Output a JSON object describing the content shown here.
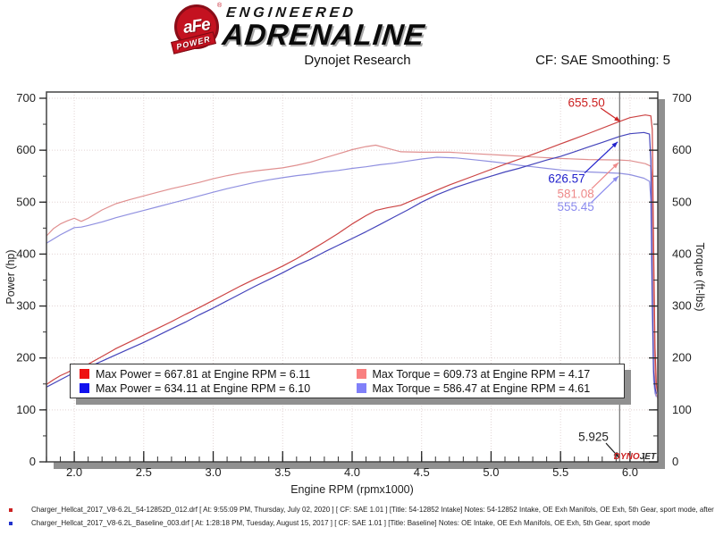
{
  "header": {
    "logo": {
      "badge_text": "aFe",
      "badge_reg": "®",
      "badge_sub": "POWER",
      "line1": "ENGINEERED",
      "line2": "ADRENALINE"
    },
    "title": "Dynojet Research",
    "cf_label": "CF: SAE Smoothing: 5"
  },
  "chart_data": {
    "type": "line",
    "xlabel": "Engine RPM (rpmx1000)",
    "ylabel_left": "Power (hp)",
    "ylabel_right": "Torque (ft-lbs)",
    "x_range": [
      1.8,
      6.2
    ],
    "y_range": [
      0,
      712
    ],
    "x_major_ticks": [
      2.0,
      2.5,
      3.0,
      3.5,
      4.0,
      4.5,
      5.0,
      5.5,
      6.0
    ],
    "x_minor_step": 0.1,
    "y_major_ticks": [
      0,
      100,
      200,
      300,
      400,
      500,
      600,
      700
    ],
    "y_minor_step": 50,
    "grid_x": [
      2.0,
      2.5,
      3.0,
      3.5,
      4.0,
      4.5,
      5.0,
      5.5,
      6.0
    ],
    "grid_y": [
      100,
      200,
      300,
      400,
      500,
      600,
      700
    ],
    "grid_on": true,
    "cursor_rpm": 5.925,
    "series": [
      {
        "name": "torque-intake",
        "color": "#e09090",
        "points": [
          [
            1.8,
            435
          ],
          [
            1.85,
            449
          ],
          [
            1.9,
            458
          ],
          [
            1.95,
            464
          ],
          [
            2.0,
            469
          ],
          [
            2.05,
            463
          ],
          [
            2.1,
            469
          ],
          [
            2.2,
            485
          ],
          [
            2.3,
            497
          ],
          [
            2.4,
            505
          ],
          [
            2.5,
            512
          ],
          [
            2.6,
            519
          ],
          [
            2.7,
            526
          ],
          [
            2.8,
            532
          ],
          [
            2.9,
            538
          ],
          [
            3.0,
            545
          ],
          [
            3.1,
            551
          ],
          [
            3.2,
            556
          ],
          [
            3.3,
            560
          ],
          [
            3.4,
            563
          ],
          [
            3.5,
            566
          ],
          [
            3.6,
            571
          ],
          [
            3.7,
            577
          ],
          [
            3.8,
            585
          ],
          [
            3.9,
            593
          ],
          [
            4.0,
            601
          ],
          [
            4.1,
            607
          ],
          [
            4.17,
            609.7
          ],
          [
            4.25,
            604
          ],
          [
            4.35,
            597
          ],
          [
            4.5,
            596
          ],
          [
            4.7,
            596
          ],
          [
            4.9,
            593
          ],
          [
            5.1,
            590
          ],
          [
            5.3,
            587
          ],
          [
            5.5,
            584
          ],
          [
            5.7,
            582
          ],
          [
            5.925,
            581.1
          ],
          [
            6.0,
            580
          ],
          [
            6.11,
            574
          ],
          [
            6.15,
            569
          ],
          [
            6.16,
            540
          ],
          [
            6.17,
            330
          ],
          [
            6.18,
            170
          ],
          [
            6.19,
            130
          ],
          [
            6.2,
            122
          ]
        ]
      },
      {
        "name": "torque-baseline",
        "color": "#9090e0",
        "points": [
          [
            1.8,
            421
          ],
          [
            1.9,
            437
          ],
          [
            2.0,
            451
          ],
          [
            2.05,
            452
          ],
          [
            2.1,
            455
          ],
          [
            2.2,
            462
          ],
          [
            2.3,
            470
          ],
          [
            2.4,
            477
          ],
          [
            2.5,
            484
          ],
          [
            2.6,
            491
          ],
          [
            2.7,
            498
          ],
          [
            2.8,
            505
          ],
          [
            2.9,
            512
          ],
          [
            3.0,
            519
          ],
          [
            3.1,
            526
          ],
          [
            3.2,
            532
          ],
          [
            3.3,
            538
          ],
          [
            3.4,
            543
          ],
          [
            3.5,
            547
          ],
          [
            3.6,
            551
          ],
          [
            3.7,
            554
          ],
          [
            3.8,
            558
          ],
          [
            3.9,
            561
          ],
          [
            4.0,
            565
          ],
          [
            4.1,
            568
          ],
          [
            4.2,
            572
          ],
          [
            4.3,
            575
          ],
          [
            4.4,
            579
          ],
          [
            4.5,
            583
          ],
          [
            4.61,
            586.5
          ],
          [
            4.75,
            585
          ],
          [
            4.9,
            581
          ],
          [
            5.0,
            578
          ],
          [
            5.1,
            575
          ],
          [
            5.2,
            571
          ],
          [
            5.3,
            568
          ],
          [
            5.4,
            565
          ],
          [
            5.5,
            562
          ],
          [
            5.6,
            560
          ],
          [
            5.7,
            558
          ],
          [
            5.8,
            557
          ],
          [
            5.925,
            555.5
          ],
          [
            6.0,
            553
          ],
          [
            6.1,
            546
          ],
          [
            6.14,
            540
          ],
          [
            6.15,
            505
          ],
          [
            6.16,
            290
          ],
          [
            6.17,
            158
          ],
          [
            6.18,
            132
          ],
          [
            6.19,
            125
          ]
        ]
      },
      {
        "name": "power-intake",
        "color": "#cc4444",
        "points": [
          [
            1.8,
            149
          ],
          [
            1.85,
            158
          ],
          [
            1.9,
            166
          ],
          [
            1.95,
            172
          ],
          [
            2.0,
            179
          ],
          [
            2.05,
            181
          ],
          [
            2.1,
            188
          ],
          [
            2.2,
            203
          ],
          [
            2.3,
            218
          ],
          [
            2.4,
            231
          ],
          [
            2.5,
            244
          ],
          [
            2.6,
            257
          ],
          [
            2.7,
            270
          ],
          [
            2.8,
            284
          ],
          [
            2.9,
            297
          ],
          [
            3.0,
            311
          ],
          [
            3.1,
            325
          ],
          [
            3.2,
            339
          ],
          [
            3.3,
            352
          ],
          [
            3.4,
            364
          ],
          [
            3.5,
            377
          ],
          [
            3.6,
            391
          ],
          [
            3.7,
            407
          ],
          [
            3.8,
            423
          ],
          [
            3.9,
            440
          ],
          [
            4.0,
            458
          ],
          [
            4.1,
            474
          ],
          [
            4.17,
            484
          ],
          [
            4.25,
            489
          ],
          [
            4.35,
            494
          ],
          [
            4.5,
            511
          ],
          [
            4.7,
            533
          ],
          [
            4.9,
            553
          ],
          [
            5.1,
            573
          ],
          [
            5.3,
            592
          ],
          [
            5.5,
            612
          ],
          [
            5.7,
            632
          ],
          [
            5.925,
            655.5
          ],
          [
            6.0,
            662.6
          ],
          [
            6.11,
            667.8
          ],
          [
            6.15,
            666
          ],
          [
            6.16,
            640
          ],
          [
            6.17,
            420
          ],
          [
            6.18,
            220
          ],
          [
            6.19,
            150
          ],
          [
            6.2,
            133
          ]
        ]
      },
      {
        "name": "power-baseline",
        "color": "#4444bb",
        "points": [
          [
            1.8,
            144
          ],
          [
            1.9,
            158
          ],
          [
            2.0,
            172
          ],
          [
            2.05,
            176
          ],
          [
            2.1,
            182
          ],
          [
            2.2,
            194
          ],
          [
            2.3,
            206
          ],
          [
            2.4,
            218
          ],
          [
            2.5,
            230
          ],
          [
            2.6,
            243
          ],
          [
            2.7,
            256
          ],
          [
            2.8,
            269
          ],
          [
            2.9,
            283
          ],
          [
            3.0,
            296
          ],
          [
            3.1,
            310
          ],
          [
            3.2,
            324
          ],
          [
            3.3,
            338
          ],
          [
            3.4,
            351
          ],
          [
            3.5,
            364
          ],
          [
            3.6,
            378
          ],
          [
            3.7,
            390
          ],
          [
            3.8,
            404
          ],
          [
            3.9,
            417
          ],
          [
            4.0,
            430
          ],
          [
            4.1,
            443
          ],
          [
            4.2,
            457
          ],
          [
            4.3,
            471
          ],
          [
            4.4,
            485
          ],
          [
            4.5,
            500
          ],
          [
            4.61,
            514
          ],
          [
            4.75,
            529
          ],
          [
            4.9,
            542
          ],
          [
            5.0,
            550
          ],
          [
            5.1,
            558
          ],
          [
            5.2,
            565
          ],
          [
            5.3,
            573
          ],
          [
            5.4,
            581
          ],
          [
            5.5,
            588
          ],
          [
            5.6,
            597
          ],
          [
            5.7,
            606
          ],
          [
            5.8,
            615
          ],
          [
            5.925,
            626.6
          ],
          [
            6.0,
            631.7
          ],
          [
            6.1,
            634.1
          ],
          [
            6.14,
            631
          ],
          [
            6.15,
            580
          ],
          [
            6.16,
            330
          ],
          [
            6.17,
            175
          ],
          [
            6.18,
            142
          ],
          [
            6.19,
            131
          ]
        ]
      }
    ],
    "annotations": [
      {
        "text": "655.50",
        "color": "#cc2222",
        "label_xy": [
          5.686,
          691
        ],
        "arrow": [
          5.789,
          681,
          5.93,
          655
        ]
      },
      {
        "text": "626.57",
        "color": "#2222cc",
        "label_xy": [
          5.544,
          545
        ],
        "arrow": [
          5.673,
          556,
          5.911,
          616
        ]
      },
      {
        "text": "581.08",
        "color": "#ee8a8a",
        "label_xy": [
          5.609,
          516
        ],
        "arrow": [
          5.724,
          526,
          5.917,
          576
        ]
      },
      {
        "text": "555.45",
        "color": "#8a8aee",
        "label_xy": [
          5.609,
          491
        ],
        "arrow": [
          5.724,
          500,
          5.917,
          550
        ]
      },
      {
        "text": "5.925",
        "color": "#222222",
        "label_xy": [
          5.737,
          48
        ],
        "arrow": [
          5.827,
          36,
          5.922,
          8
        ]
      }
    ],
    "watermark": {
      "part1": "DYNO",
      "part2": "JET"
    },
    "legend_rows": [
      [
        {
          "color": "#ee1111",
          "label": "Max Power = 667.81 at Engine RPM = 6.11"
        },
        {
          "color": "#f98080",
          "label": "Max Torque = 609.73 at Engine RPM = 4.17"
        }
      ],
      [
        {
          "color": "#1111ee",
          "label": "Max Power = 634.11 at Engine RPM = 6.10"
        },
        {
          "color": "#8080f9",
          "label": "Max Torque = 586.47 at Engine RPM = 4.61"
        }
      ]
    ]
  },
  "footer": {
    "runs": [
      {
        "color": "#cc2222",
        "text": "Charger_Hellcat_2017_V8-6.2L_54-12852D_012.drf [ At: 9:55:09 PM, Thursday, July 02, 2020 ] [ CF: SAE 1.01 ] [Title: 54-12852 Intake]  Notes: 54-12852 Intake, OE Exh Manifols, OE Exh, 5th Gear, sport mode, after miles."
      },
      {
        "color": "#2233cc",
        "text": "Charger_Hellcat_2017_V8-6.2L_Baseline_003.drf [ At: 1:28:18 PM, Tuesday, August 15, 2017 ] [ CF: SAE 1.01 ] [Title: Baseline]  Notes: OE Intake, OE Exh Manifols, OE Exh, 5th Gear, sport mode"
      }
    ]
  },
  "style": {
    "grid_color": "#e2d4d4",
    "axis_color": "#444",
    "shadow_color": "#909090",
    "cursor_color": "#555"
  }
}
